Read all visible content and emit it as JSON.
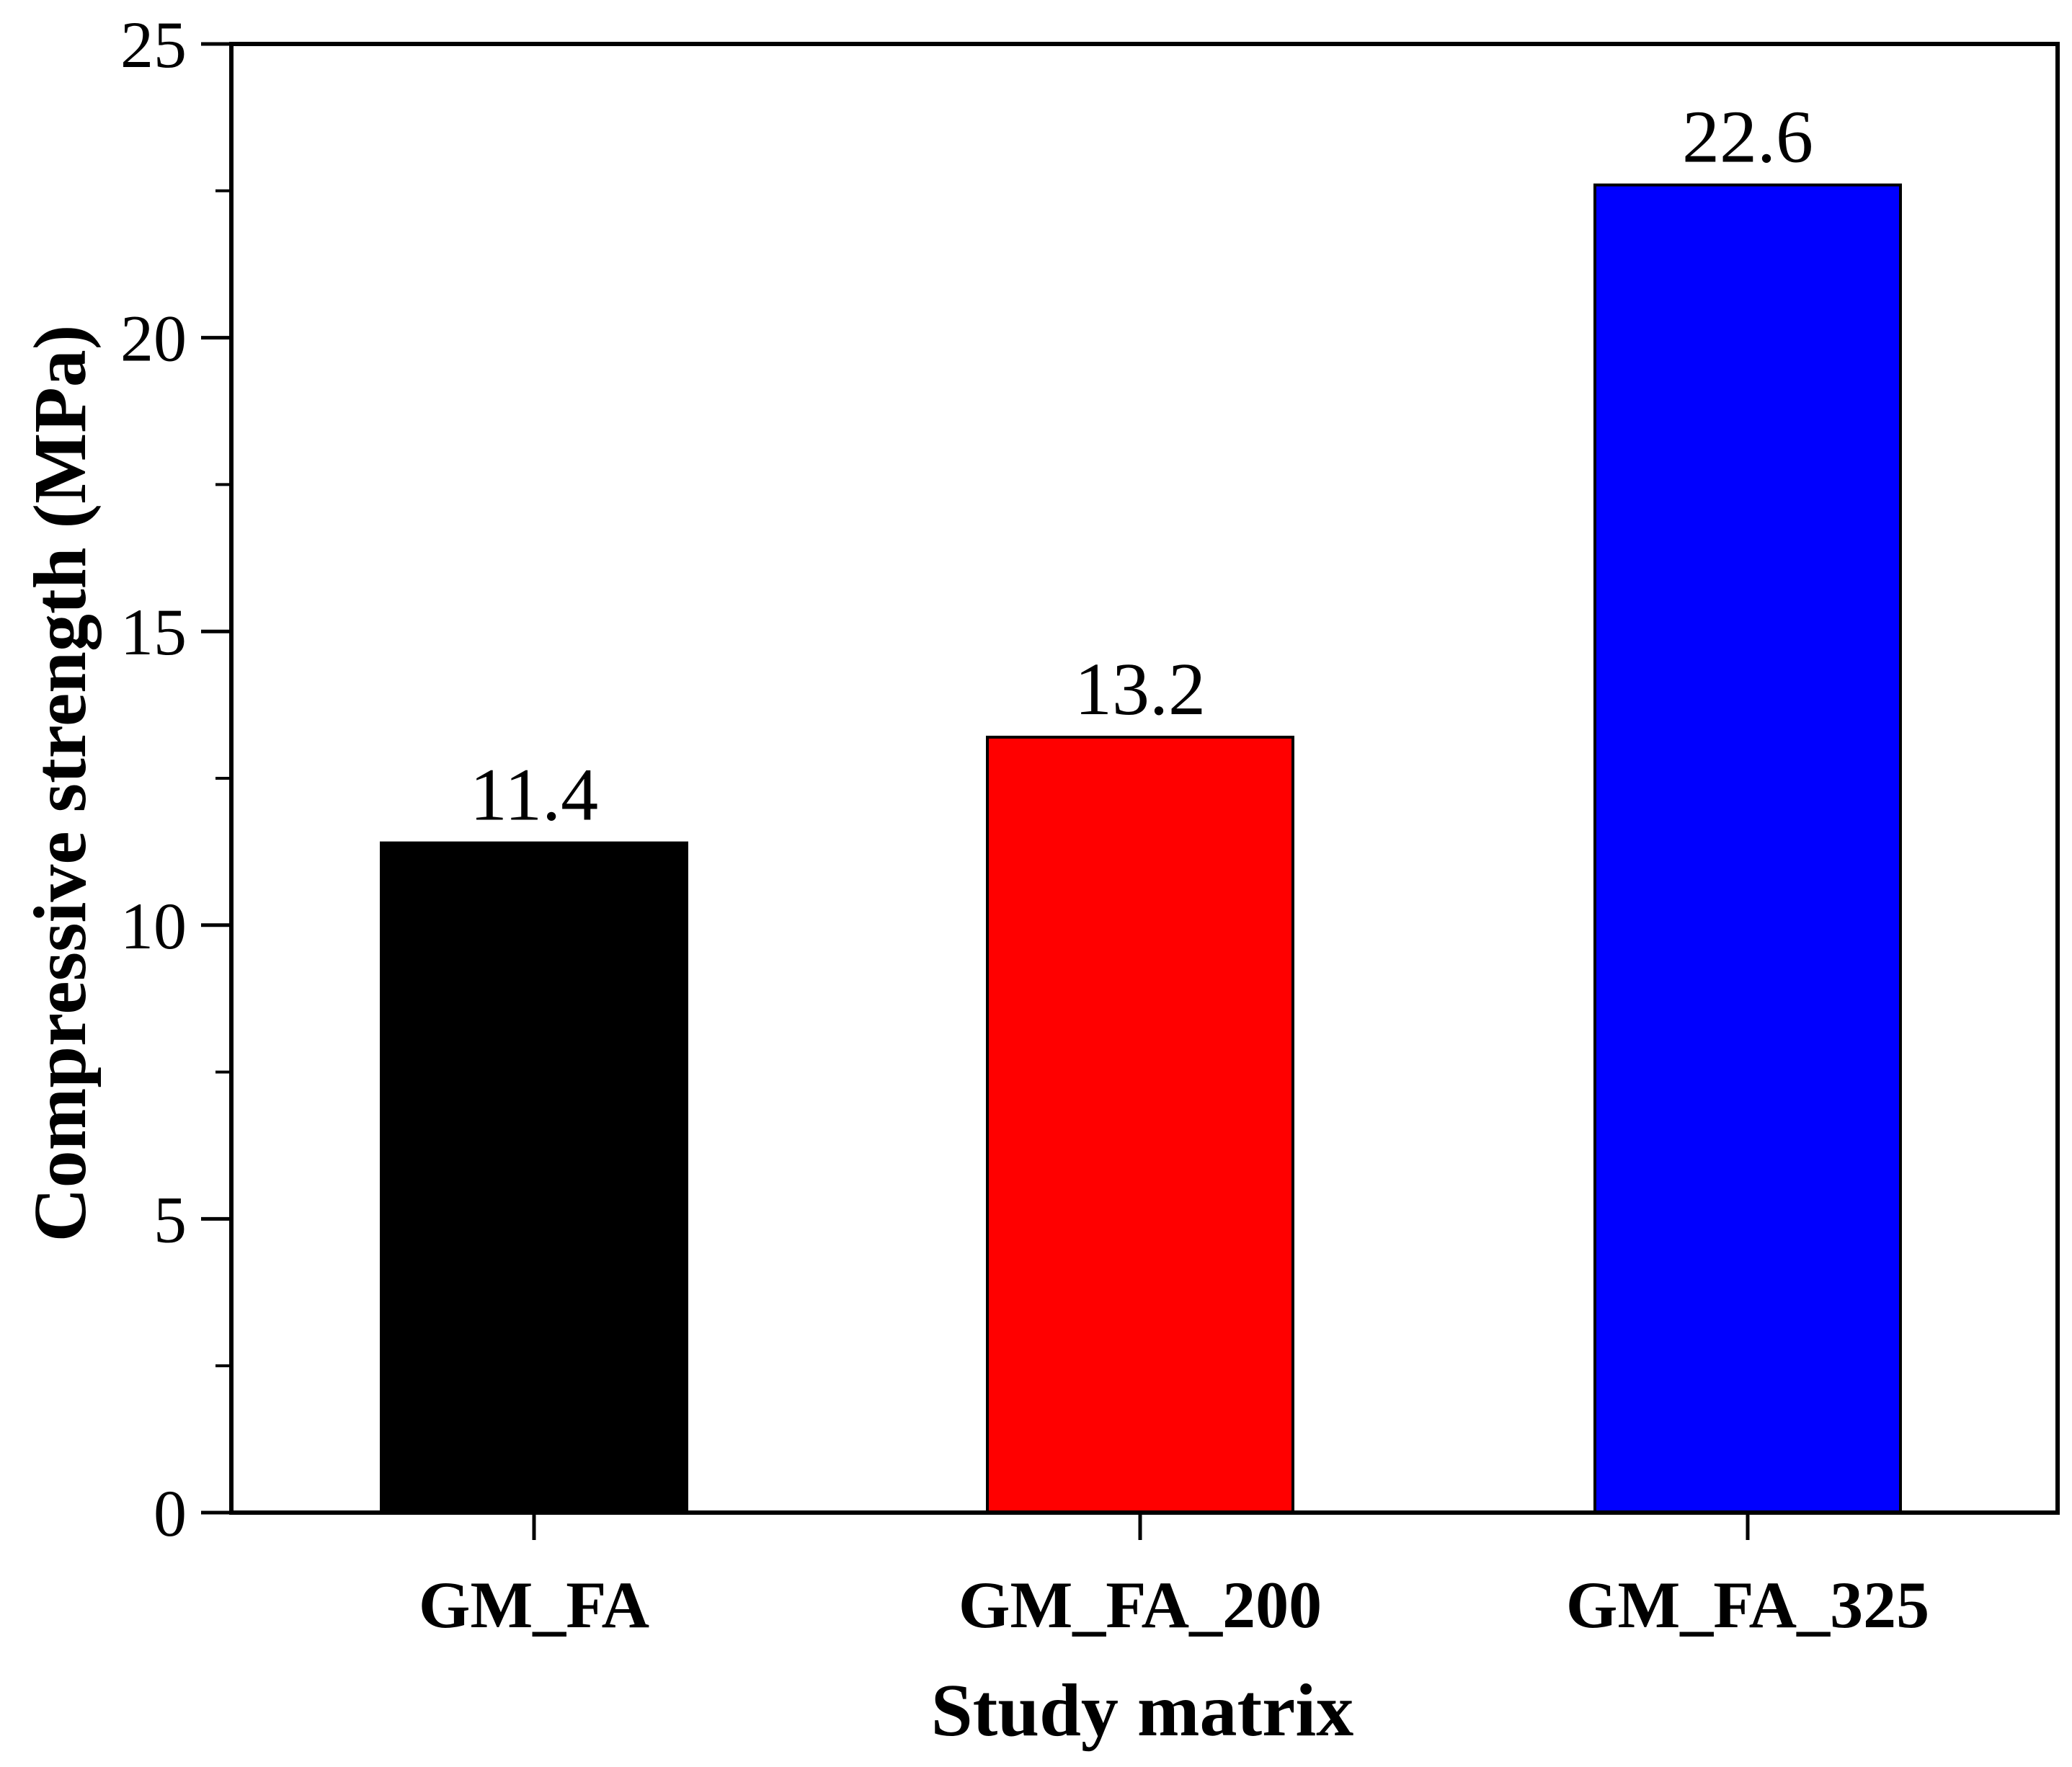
{
  "chart_data": {
    "type": "bar",
    "title": "",
    "xlabel": "Study matrix",
    "ylabel": "Compressive strength (MPa)",
    "categories": [
      "GM_FA",
      "GM_FA_200",
      "GM_FA_325"
    ],
    "values": [
      11.4,
      13.2,
      22.6
    ],
    "data_labels": [
      "11.4",
      "13.2",
      "22.6"
    ],
    "bar_colors": [
      "#000000",
      "#ff0000",
      "#0000ff"
    ],
    "ylim": [
      0,
      25
    ],
    "yticks": [
      0,
      5,
      10,
      15,
      20,
      25
    ],
    "ytick_labels": [
      "0",
      "5",
      "10",
      "15",
      "20",
      "25"
    ],
    "y_minor_step": 2.5,
    "grid": false,
    "legend": "none"
  }
}
